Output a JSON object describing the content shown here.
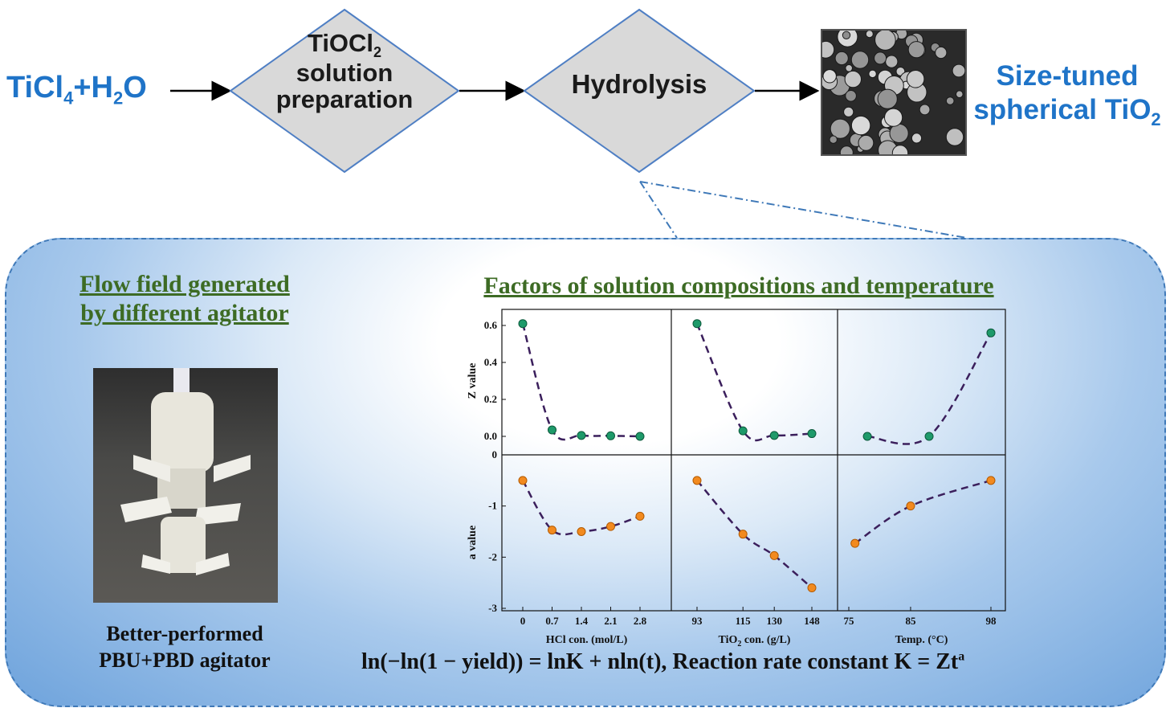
{
  "flow": {
    "start_main": "TiCl",
    "start_sub": "4",
    "start_rest": "+H",
    "start_sub2": "2",
    "start_tail": "O",
    "step1_line1_main": "TiOCl",
    "step1_line1_sub": "2",
    "step1_line2": "solution",
    "step1_line3": "preparation",
    "step2": "Hydrolysis",
    "result_line1": "Size-tuned",
    "result_line2_main": "spherical TiO",
    "result_line2_sub": "2"
  },
  "left_panel": {
    "heading_line1": "Flow field generated",
    "heading_line2": "by different agitator",
    "caption_line1": "Better-performed",
    "caption_line2": "PBU+PBD agitator"
  },
  "right_panel": {
    "heading": "Factors of solution compositions and temperature"
  },
  "equation": {
    "text": "ln(−ln(1 − yield)) = lnK + nln(t), Reaction rate constant K = Zt",
    "superscript": "a"
  },
  "colors": {
    "accent_blue": "#1f74c8",
    "heading_green": "#3d6b24",
    "z_marker": "#1e9a6a",
    "a_marker": "#f28a1f",
    "fit_line": "#3b1f5c",
    "diamond_fill": "#d9d9d9",
    "diamond_border": "#4f7fc4"
  },
  "chart_data": {
    "type": "scatter",
    "panels": [
      {
        "name": "HCl",
        "xlabel": "HCl con. (mol/L)",
        "x_ticks": [
          "0",
          "0.7",
          "1.4",
          "2.1",
          "2.8"
        ],
        "z": {
          "x": [
            0,
            0.7,
            1.4,
            2.1,
            2.8
          ],
          "y": [
            0.61,
            0.035,
            0.005,
            0.003,
            0.0
          ]
        },
        "a": {
          "x": [
            0,
            0.7,
            1.4,
            2.1,
            2.8
          ],
          "y": [
            -0.5,
            -1.47,
            -1.5,
            -1.4,
            -1.2
          ]
        }
      },
      {
        "name": "TiO2",
        "xlabel_main": "TiO",
        "xlabel_sub": "2",
        "xlabel_rest": " con. (g/L)",
        "x_ticks": [
          "93",
          "115",
          "130",
          "148"
        ],
        "z": {
          "x": [
            93,
            115,
            130,
            148
          ],
          "y": [
            0.61,
            0.03,
            0.005,
            0.015
          ]
        },
        "a": {
          "x": [
            93,
            115,
            130,
            148
          ],
          "y": [
            -0.5,
            -1.55,
            -1.97,
            -2.6
          ]
        }
      },
      {
        "name": "Temp",
        "xlabel": "Temp. (°C)",
        "x_ticks": [
          "75",
          "85",
          "98"
        ],
        "z": {
          "x": [
            78,
            88,
            98
          ],
          "y": [
            0.0,
            0.0,
            0.56
          ]
        },
        "a": {
          "x": [
            76,
            85,
            98
          ],
          "y": [
            -1.73,
            -1.0,
            -0.5
          ]
        }
      }
    ],
    "z_ylabel": "Z value",
    "a_ylabel": "a value",
    "z_ylim": [
      0,
      0.65
    ],
    "a_ylim": [
      -3,
      0
    ],
    "z_ticks": [
      "0.0",
      "0.2",
      "0.4",
      "0.6"
    ],
    "a_ticks": [
      "0",
      "-1",
      "-2",
      "-3"
    ]
  }
}
